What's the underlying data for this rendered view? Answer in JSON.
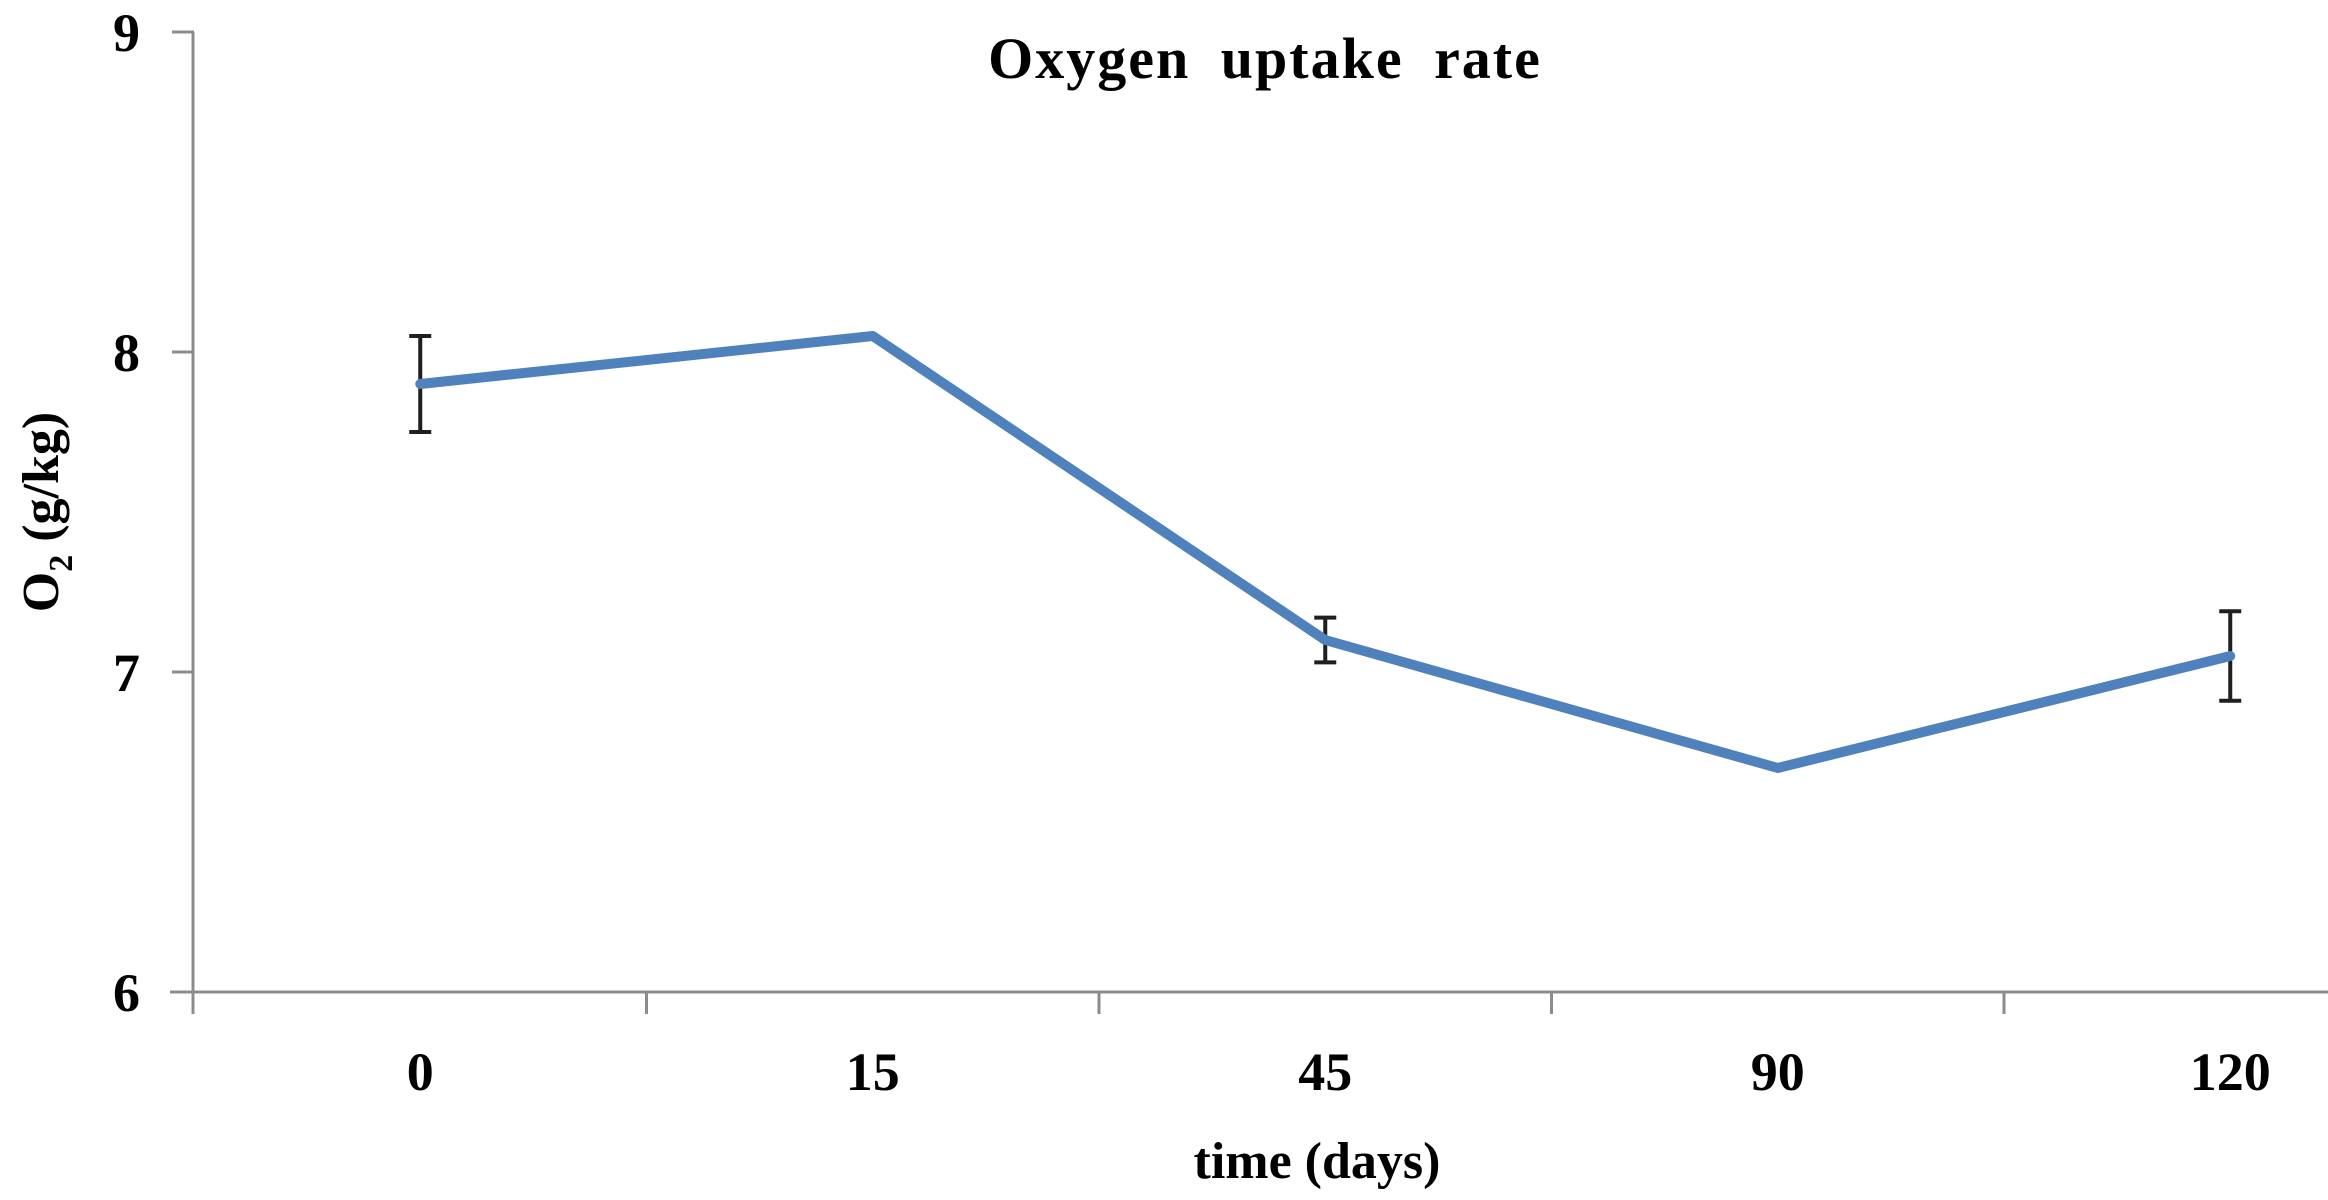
{
  "figure": {
    "background": "#FFFFFF"
  },
  "chart_data": {
    "type": "line",
    "title": "Oxygen uptake rate",
    "xlabel": "time (days)",
    "ylabel": "O2 (g/kg)",
    "ylabel_parts": {
      "main": "O",
      "sub": "2",
      "rest": " (g/kg)"
    },
    "categories": [
      "0",
      "15",
      "45",
      "90",
      "120"
    ],
    "series": [
      {
        "name": "Oxygen uptake rate",
        "values": [
          7.9,
          8.05,
          7.1,
          6.7,
          7.05
        ],
        "error_bars": [
          0.15,
          0,
          0.07,
          0,
          0.14
        ]
      }
    ],
    "ylim": [
      6,
      9
    ],
    "yticks": [
      6,
      7,
      8,
      9
    ],
    "grid": false,
    "legend_position": "none",
    "line_color": "#4F81BD",
    "axis_color": "#8C8C8C",
    "error_bar_color": "#1F1F1F",
    "text_color": "#000000"
  }
}
